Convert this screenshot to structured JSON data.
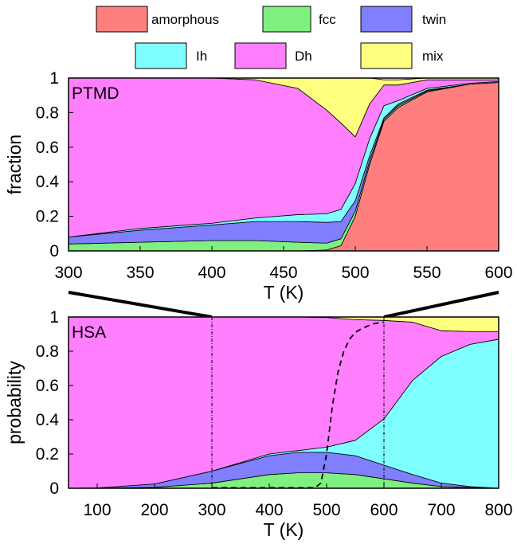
{
  "legend": [
    {
      "label": "amorphous",
      "color": "#ff7f7f"
    },
    {
      "label": "fcc",
      "color": "#7fef7f"
    },
    {
      "label": "twin",
      "color": "#7f7fff"
    },
    {
      "label": "Ih",
      "color": "#7fffff"
    },
    {
      "label": "Dh",
      "color": "#ff7fff"
    },
    {
      "label": "mix",
      "color": "#ffff7f"
    }
  ],
  "chart_data": [
    {
      "type": "area",
      "stacked": true,
      "panel_label": "PTMD",
      "xlabel": "T (K)",
      "ylabel": "fraction",
      "xlim": [
        300,
        600
      ],
      "ylim": [
        0,
        1
      ],
      "xticks": [
        300,
        350,
        400,
        450,
        500,
        550,
        600
      ],
      "yticks": [
        0,
        0.2,
        0.4,
        0.6,
        0.8,
        1
      ],
      "grid": false,
      "x": [
        300,
        350,
        400,
        430,
        460,
        480,
        490,
        500,
        510,
        520,
        530,
        550,
        580,
        600
      ],
      "series": [
        {
          "name": "amorphous",
          "values": [
            0,
            0,
            0,
            0,
            0,
            0.005,
            0.03,
            0.2,
            0.5,
            0.75,
            0.83,
            0.92,
            0.965,
            0.975
          ]
        },
        {
          "name": "fcc",
          "values": [
            0.04,
            0.05,
            0.06,
            0.06,
            0.05,
            0.04,
            0.04,
            0.03,
            0.02,
            0.01,
            0.01,
            0.005,
            0,
            0
          ]
        },
        {
          "name": "twin",
          "values": [
            0.04,
            0.07,
            0.09,
            0.11,
            0.12,
            0.12,
            0.1,
            0.06,
            0.03,
            0.01,
            0.01,
            0.005,
            0,
            0
          ]
        },
        {
          "name": "Ih",
          "values": [
            0,
            0.01,
            0.01,
            0.02,
            0.04,
            0.05,
            0.07,
            0.1,
            0.1,
            0.07,
            0.02,
            0.01,
            0.005,
            0.005
          ]
        },
        {
          "name": "Dh",
          "values": [
            0.92,
            0.87,
            0.84,
            0.8,
            0.73,
            0.6,
            0.5,
            0.27,
            0.2,
            0.12,
            0.09,
            0.05,
            0.02,
            0.01
          ]
        },
        {
          "name": "mix",
          "values": [
            0,
            0,
            0,
            0.01,
            0.06,
            0.185,
            0.26,
            0.34,
            0.15,
            0.03,
            0.03,
            0.01,
            0.01,
            0.01
          ]
        }
      ]
    },
    {
      "type": "area",
      "stacked": true,
      "panel_label": "HSA",
      "xlabel": "T (K)",
      "ylabel": "probability",
      "xlim": [
        50,
        800
      ],
      "ylim": [
        0,
        1
      ],
      "xticks": [
        100,
        200,
        300,
        400,
        500,
        600,
        700,
        800
      ],
      "yticks": [
        0,
        0.2,
        0.4,
        0.6,
        0.8,
        1
      ],
      "grid": false,
      "x": [
        50,
        100,
        200,
        300,
        400,
        450,
        500,
        550,
        600,
        650,
        700,
        750,
        800
      ],
      "series": [
        {
          "name": "amorphous",
          "values": [
            0,
            0,
            0,
            0,
            0,
            0,
            0,
            0,
            0,
            0,
            0,
            0,
            0
          ]
        },
        {
          "name": "fcc",
          "values": [
            0,
            0,
            0.005,
            0.03,
            0.08,
            0.09,
            0.09,
            0.08,
            0.055,
            0.03,
            0.01,
            0.005,
            0
          ]
        },
        {
          "name": "twin",
          "values": [
            0,
            0.002,
            0.02,
            0.07,
            0.11,
            0.12,
            0.12,
            0.11,
            0.08,
            0.05,
            0.02,
            0.005,
            0
          ]
        },
        {
          "name": "Ih",
          "values": [
            0,
            0,
            0,
            0,
            0.01,
            0.01,
            0.03,
            0.09,
            0.27,
            0.55,
            0.74,
            0.83,
            0.87
          ]
        },
        {
          "name": "Dh",
          "values": [
            1,
            0.998,
            0.975,
            0.9,
            0.8,
            0.78,
            0.757,
            0.705,
            0.575,
            0.34,
            0.15,
            0.075,
            0.045
          ]
        },
        {
          "name": "mix",
          "values": [
            0,
            0,
            0,
            0,
            0,
            0,
            0.003,
            0.015,
            0.02,
            0.03,
            0.08,
            0.085,
            0.085
          ]
        }
      ],
      "dashed_line": {
        "x": [
          300,
          400,
          480,
          490,
          500,
          510,
          520,
          530,
          540,
          550,
          560,
          580,
          600
        ],
        "values": [
          0.003,
          0.003,
          0.003,
          0.03,
          0.2,
          0.48,
          0.68,
          0.8,
          0.87,
          0.91,
          0.93,
          0.96,
          0.97
        ]
      },
      "reference_lines_x": [
        300,
        600
      ]
    }
  ]
}
